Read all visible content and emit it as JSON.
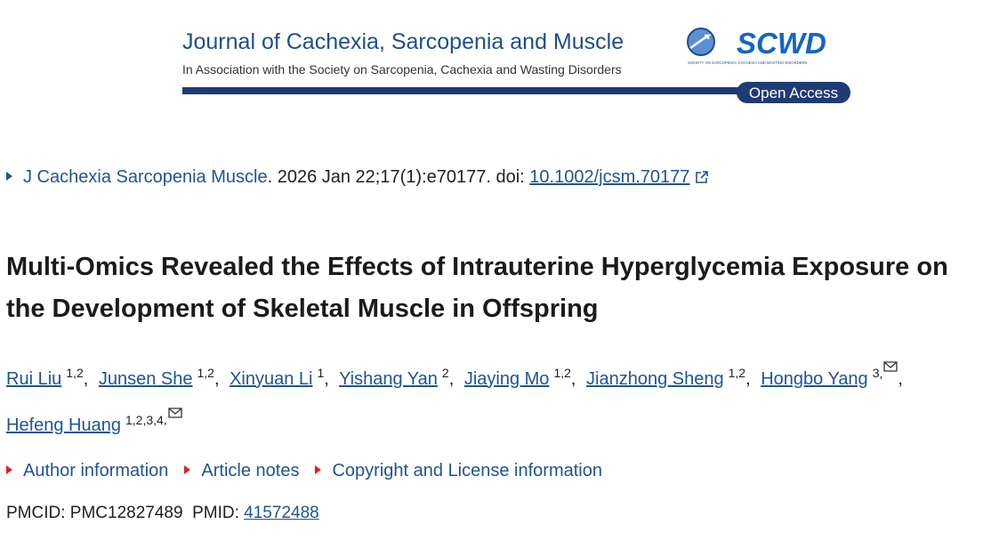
{
  "banner": {
    "journal": "Journal of Cachexia, Sarcopenia and Muscle",
    "association": "In Association with the Society on Sarcopenia, Cachexia and Wasting Disorders",
    "society_logo": "SCWD",
    "society_name": "SOCIETY ON SARCOPENIA, CACHEXIA AND WASTING DISORDERS",
    "access": "Open Access"
  },
  "citation": {
    "journal": "J Cachexia Sarcopenia Muscle",
    "details": ". 2026 Jan 22;17(1):e70177. doi:",
    "doi": "10.1002/jcsm.70177"
  },
  "title": "Multi‐Omics Revealed the Effects of Intrauterine Hyperglycemia Exposure on the Development of Skeletal Muscle in Offspring",
  "authors": {
    "separator": ",",
    "list": [
      {
        "name": "Rui Liu",
        "affiliations": "1,2",
        "corresponding": false
      },
      {
        "name": "Junsen She",
        "affiliations": "1,2",
        "corresponding": false
      },
      {
        "name": "Xinyuan Li",
        "affiliations": "1",
        "corresponding": false
      },
      {
        "name": "Yishang Yan",
        "affiliations": "2",
        "corresponding": false
      },
      {
        "name": "Jiaying Mo",
        "affiliations": "1,2",
        "corresponding": false
      },
      {
        "name": "Jianzhong Sheng",
        "affiliations": "1,2",
        "corresponding": false
      },
      {
        "name": "Hongbo Yang",
        "affiliations": "3",
        "corresponding": true
      },
      {
        "name": "Hefeng Huang",
        "affiliations": "1,2,3,4",
        "corresponding": true
      }
    ]
  },
  "sections": [
    "Author information",
    "Article notes",
    "Copyright and License information"
  ],
  "identifiers": {
    "pmcid_label": "PMCID:",
    "pmcid": "PMC12827489",
    "pmid_label": "PMID:",
    "pmid": "41572488"
  }
}
